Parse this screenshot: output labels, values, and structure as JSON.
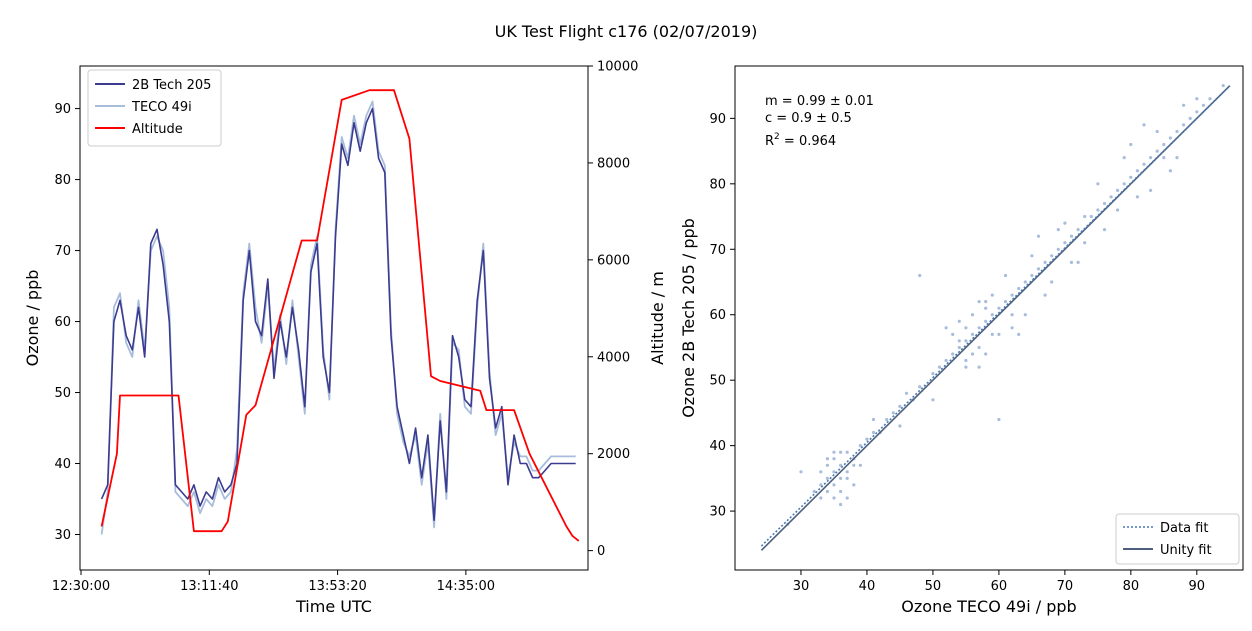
{
  "figure": {
    "title": "UK Test Flight c176 (02/07/2019)"
  },
  "chart_data": [
    {
      "type": "line",
      "xlabel": "Time UTC",
      "ylabel": "Ozone / ppb",
      "y2label": "Altitude / m",
      "x_ticks": [
        "12:30:00",
        "13:11:40",
        "13:53:20",
        "14:35:00"
      ],
      "ylim": [
        25,
        96
      ],
      "y_ticks": [
        30,
        40,
        50,
        60,
        70,
        80,
        90
      ],
      "y2lim": [
        -400,
        10000
      ],
      "y2_ticks": [
        0,
        2000,
        4000,
        6000,
        8000,
        10000
      ],
      "x_range_minutes": [
        -42,
        123
      ],
      "grid": false,
      "legend_position": "top-left",
      "colors": {
        "2B Tech 205": "#3b3b8f",
        "TECO 49i": "#a8bddc",
        "Altitude": "#ff0000"
      },
      "series": [
        {
          "name": "2B Tech 205",
          "axis": "left",
          "note": "ozone time series, 1-minute samples, time in minutes after 13:11:40",
          "x": [
            -35,
            -33,
            -31,
            -29,
            -27,
            -25,
            -23,
            -21,
            -19,
            -17,
            -15,
            -13,
            -11,
            -9,
            -7,
            -5,
            -3,
            -1,
            1,
            3,
            5,
            7,
            9,
            11,
            13,
            15,
            17,
            19,
            21,
            23,
            25,
            27,
            29,
            31,
            33,
            35,
            37,
            39,
            41,
            43,
            45,
            47,
            49,
            51,
            53,
            55,
            57,
            59,
            61,
            63,
            65,
            67,
            69,
            71,
            73,
            75,
            77,
            79,
            81,
            83,
            85,
            87,
            89,
            91,
            93,
            95,
            97,
            99,
            101,
            103,
            105,
            107,
            109,
            111,
            113,
            115,
            117,
            119
          ],
          "y": [
            35,
            37,
            60,
            63,
            58,
            56,
            62,
            55,
            71,
            73,
            68,
            60,
            37,
            36,
            35,
            37,
            34,
            36,
            35,
            38,
            36,
            37,
            40,
            63,
            70,
            60,
            58,
            66,
            52,
            60,
            55,
            62,
            56,
            48,
            67,
            71,
            55,
            50,
            72,
            85,
            82,
            88,
            84,
            88,
            90,
            83,
            81,
            58,
            48,
            44,
            40,
            45,
            38,
            44,
            32,
            46,
            36,
            58,
            55,
            49,
            48,
            63,
            70,
            52,
            45,
            48,
            37,
            44,
            40,
            40,
            38,
            38,
            39,
            40,
            40,
            40,
            40,
            40
          ]
        },
        {
          "name": "TECO 49i",
          "axis": "left",
          "x": [
            -35,
            -33,
            -31,
            -29,
            -27,
            -25,
            -23,
            -21,
            -19,
            -17,
            -15,
            -13,
            -11,
            -9,
            -7,
            -5,
            -3,
            -1,
            1,
            3,
            5,
            7,
            9,
            11,
            13,
            15,
            17,
            19,
            21,
            23,
            25,
            27,
            29,
            31,
            33,
            35,
            37,
            39,
            41,
            43,
            45,
            47,
            49,
            51,
            53,
            55,
            57,
            59,
            61,
            63,
            65,
            67,
            69,
            71,
            73,
            75,
            77,
            79,
            81,
            83,
            85,
            87,
            89,
            91,
            93,
            95,
            97,
            99,
            101,
            103,
            105,
            107,
            109,
            111,
            113,
            115,
            117,
            119
          ],
          "y": [
            30,
            36,
            62,
            64,
            57,
            55,
            63,
            56,
            70,
            72,
            70,
            62,
            36,
            35,
            34,
            36,
            33,
            35,
            34,
            37,
            35,
            36,
            42,
            64,
            71,
            62,
            57,
            65,
            53,
            61,
            54,
            63,
            55,
            47,
            68,
            72,
            56,
            49,
            73,
            86,
            83,
            89,
            85,
            89,
            91,
            84,
            82,
            59,
            47,
            43,
            41,
            44,
            37,
            43,
            31,
            47,
            35,
            57,
            56,
            48,
            47,
            62,
            71,
            53,
            44,
            47,
            38,
            43,
            41,
            41,
            39,
            39,
            40,
            41,
            41,
            41,
            41,
            41
          ]
        },
        {
          "name": "Altitude",
          "axis": "right",
          "x": [
            -35,
            -30,
            -29,
            -18,
            -10,
            -5,
            4,
            6,
            12,
            15,
            30,
            35,
            43,
            52,
            60,
            65,
            72,
            75,
            88,
            90,
            99,
            104,
            116,
            118,
            120
          ],
          "y": [
            500,
            2000,
            3200,
            3200,
            3200,
            400,
            400,
            600,
            2800,
            3000,
            6400,
            6400,
            9300,
            9500,
            9500,
            8500,
            3600,
            3500,
            3300,
            2900,
            2900,
            2000,
            500,
            300,
            200
          ]
        }
      ]
    },
    {
      "type": "scatter",
      "xlabel": "Ozone TECO 49i / ppb",
      "ylabel": "Ozone 2B Tech 205 / ppb",
      "xlim": [
        20,
        97
      ],
      "ylim": [
        21,
        98
      ],
      "x_ticks": [
        30,
        40,
        50,
        60,
        70,
        80,
        90
      ],
      "y_ticks": [
        30,
        40,
        50,
        60,
        70,
        80,
        90
      ],
      "grid": false,
      "legend_position": "bottom-right",
      "annotations": [
        "m = 0.99 ± 0.01",
        "c = 0.9 ± 0.5",
        "R",
        "2",
        " = 0.964"
      ],
      "colors": {
        "points": "#a8bddc",
        "Data fit": "#4a7ab5",
        "Unity fit": "#4d5f7a"
      },
      "series": [
        {
          "name": "Data fit",
          "style": "dotted",
          "x": [
            24,
            95
          ],
          "y": [
            24.66,
            94.95
          ]
        },
        {
          "name": "Unity fit",
          "style": "solid",
          "x": [
            24,
            95
          ],
          "y": [
            24,
            95
          ]
        },
        {
          "points": [
            [
              33,
              34
            ],
            [
              34,
              35
            ],
            [
              35,
              36
            ],
            [
              36,
              37
            ],
            [
              34,
              33
            ],
            [
              35,
              34
            ],
            [
              36,
              35
            ],
            [
              37,
              36
            ],
            [
              38,
              38
            ],
            [
              33,
              32
            ],
            [
              34,
              37
            ],
            [
              35,
              38
            ],
            [
              36,
              33
            ],
            [
              37,
              35
            ],
            [
              38,
              37
            ],
            [
              36,
              39
            ],
            [
              39,
              40
            ],
            [
              40,
              41
            ],
            [
              41,
              42
            ],
            [
              42,
              42
            ],
            [
              44,
              45
            ],
            [
              45,
              46
            ],
            [
              43,
              44
            ],
            [
              46,
              48
            ],
            [
              47,
              47
            ],
            [
              48,
              49
            ],
            [
              50,
              51
            ],
            [
              51,
              52
            ],
            [
              52,
              53
            ],
            [
              53,
              54
            ],
            [
              54,
              55
            ],
            [
              55,
              56
            ],
            [
              56,
              57
            ],
            [
              57,
              58
            ],
            [
              58,
              59
            ],
            [
              59,
              60
            ],
            [
              54,
              56
            ],
            [
              55,
              58
            ],
            [
              56,
              54
            ],
            [
              57,
              55
            ],
            [
              58,
              61
            ],
            [
              59,
              57
            ],
            [
              60,
              61
            ],
            [
              61,
              62
            ],
            [
              62,
              63
            ],
            [
              63,
              64
            ],
            [
              64,
              65
            ],
            [
              65,
              66
            ],
            [
              66,
              67
            ],
            [
              67,
              68
            ],
            [
              68,
              69
            ],
            [
              69,
              70
            ],
            [
              70,
              71
            ],
            [
              71,
              72
            ],
            [
              72,
              73
            ],
            [
              73,
              75
            ],
            [
              74,
              75
            ],
            [
              75,
              76
            ],
            [
              76,
              77
            ],
            [
              77,
              78
            ],
            [
              78,
              79
            ],
            [
              79,
              80
            ],
            [
              80,
              81
            ],
            [
              81,
              82
            ],
            [
              82,
              83
            ],
            [
              83,
              84
            ],
            [
              84,
              85
            ],
            [
              85,
              86
            ],
            [
              86,
              87
            ],
            [
              87,
              88
            ],
            [
              88,
              89
            ],
            [
              89,
              90
            ],
            [
              90,
              91
            ],
            [
              91,
              92
            ],
            [
              92,
              93
            ],
            [
              94,
              95
            ],
            [
              30,
              36
            ],
            [
              28,
              28
            ],
            [
              32,
              33
            ],
            [
              37,
              32
            ],
            [
              48,
              66
            ],
            [
              60,
              44
            ],
            [
              85,
              84
            ],
            [
              63,
              57
            ],
            [
              66,
              72
            ],
            [
              72,
              68
            ],
            [
              52,
              58
            ],
            [
              45,
              43
            ],
            [
              41,
              44
            ],
            [
              39,
              37
            ],
            [
              55,
              52
            ],
            [
              58,
              62
            ],
            [
              62,
              58
            ],
            [
              70,
              74
            ],
            [
              76,
              73
            ],
            [
              80,
              86
            ],
            [
              83,
              79
            ],
            [
              88,
              92
            ],
            [
              50,
              47
            ],
            [
              57,
              62
            ],
            [
              61,
              66
            ],
            [
              64,
              60
            ],
            [
              68,
              65
            ],
            [
              75,
              80
            ],
            [
              82,
              89
            ],
            [
              86,
              82
            ],
            [
              90,
              93
            ],
            [
              35,
              39
            ],
            [
              36,
              31
            ],
            [
              38,
              34
            ],
            [
              34,
              38
            ],
            [
              33,
              36
            ],
            [
              37,
              39
            ],
            [
              35,
              32
            ],
            [
              58,
              54
            ],
            [
              56,
              60
            ],
            [
              54,
              59
            ],
            [
              60,
              57
            ],
            [
              55,
              53
            ],
            [
              53,
              57
            ],
            [
              57,
              52
            ],
            [
              59,
              63
            ],
            [
              62,
              60
            ],
            [
              65,
              69
            ],
            [
              67,
              63
            ],
            [
              69,
              73
            ],
            [
              71,
              68
            ],
            [
              73,
              71
            ],
            [
              78,
              76
            ],
            [
              79,
              84
            ],
            [
              81,
              78
            ],
            [
              84,
              88
            ],
            [
              87,
              84
            ]
          ]
        }
      ]
    }
  ]
}
